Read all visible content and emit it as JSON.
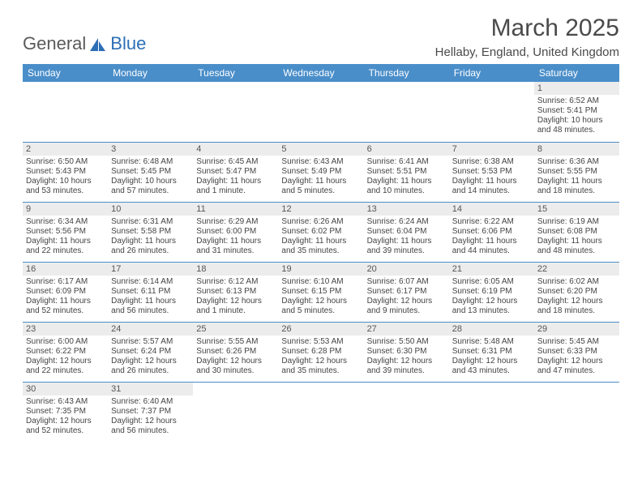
{
  "logo": {
    "part1": "General",
    "part2": "Blue"
  },
  "title": "March 2025",
  "location": "Hellaby, England, United Kingdom",
  "colors": {
    "header_bg": "#4a8ec9",
    "header_fg": "#ffffff",
    "daynum_bg": "#ececec",
    "border": "#4a8ec9",
    "text": "#444444",
    "logo_blue": "#2d6fb5"
  },
  "dayNames": [
    "Sunday",
    "Monday",
    "Tuesday",
    "Wednesday",
    "Thursday",
    "Friday",
    "Saturday"
  ],
  "weeks": [
    [
      null,
      null,
      null,
      null,
      null,
      null,
      {
        "n": "1",
        "sr": "Sunrise: 6:52 AM",
        "ss": "Sunset: 5:41 PM",
        "d1": "Daylight: 10 hours",
        "d2": "and 48 minutes."
      }
    ],
    [
      {
        "n": "2",
        "sr": "Sunrise: 6:50 AM",
        "ss": "Sunset: 5:43 PM",
        "d1": "Daylight: 10 hours",
        "d2": "and 53 minutes."
      },
      {
        "n": "3",
        "sr": "Sunrise: 6:48 AM",
        "ss": "Sunset: 5:45 PM",
        "d1": "Daylight: 10 hours",
        "d2": "and 57 minutes."
      },
      {
        "n": "4",
        "sr": "Sunrise: 6:45 AM",
        "ss": "Sunset: 5:47 PM",
        "d1": "Daylight: 11 hours",
        "d2": "and 1 minute."
      },
      {
        "n": "5",
        "sr": "Sunrise: 6:43 AM",
        "ss": "Sunset: 5:49 PM",
        "d1": "Daylight: 11 hours",
        "d2": "and 5 minutes."
      },
      {
        "n": "6",
        "sr": "Sunrise: 6:41 AM",
        "ss": "Sunset: 5:51 PM",
        "d1": "Daylight: 11 hours",
        "d2": "and 10 minutes."
      },
      {
        "n": "7",
        "sr": "Sunrise: 6:38 AM",
        "ss": "Sunset: 5:53 PM",
        "d1": "Daylight: 11 hours",
        "d2": "and 14 minutes."
      },
      {
        "n": "8",
        "sr": "Sunrise: 6:36 AM",
        "ss": "Sunset: 5:55 PM",
        "d1": "Daylight: 11 hours",
        "d2": "and 18 minutes."
      }
    ],
    [
      {
        "n": "9",
        "sr": "Sunrise: 6:34 AM",
        "ss": "Sunset: 5:56 PM",
        "d1": "Daylight: 11 hours",
        "d2": "and 22 minutes."
      },
      {
        "n": "10",
        "sr": "Sunrise: 6:31 AM",
        "ss": "Sunset: 5:58 PM",
        "d1": "Daylight: 11 hours",
        "d2": "and 26 minutes."
      },
      {
        "n": "11",
        "sr": "Sunrise: 6:29 AM",
        "ss": "Sunset: 6:00 PM",
        "d1": "Daylight: 11 hours",
        "d2": "and 31 minutes."
      },
      {
        "n": "12",
        "sr": "Sunrise: 6:26 AM",
        "ss": "Sunset: 6:02 PM",
        "d1": "Daylight: 11 hours",
        "d2": "and 35 minutes."
      },
      {
        "n": "13",
        "sr": "Sunrise: 6:24 AM",
        "ss": "Sunset: 6:04 PM",
        "d1": "Daylight: 11 hours",
        "d2": "and 39 minutes."
      },
      {
        "n": "14",
        "sr": "Sunrise: 6:22 AM",
        "ss": "Sunset: 6:06 PM",
        "d1": "Daylight: 11 hours",
        "d2": "and 44 minutes."
      },
      {
        "n": "15",
        "sr": "Sunrise: 6:19 AM",
        "ss": "Sunset: 6:08 PM",
        "d1": "Daylight: 11 hours",
        "d2": "and 48 minutes."
      }
    ],
    [
      {
        "n": "16",
        "sr": "Sunrise: 6:17 AM",
        "ss": "Sunset: 6:09 PM",
        "d1": "Daylight: 11 hours",
        "d2": "and 52 minutes."
      },
      {
        "n": "17",
        "sr": "Sunrise: 6:14 AM",
        "ss": "Sunset: 6:11 PM",
        "d1": "Daylight: 11 hours",
        "d2": "and 56 minutes."
      },
      {
        "n": "18",
        "sr": "Sunrise: 6:12 AM",
        "ss": "Sunset: 6:13 PM",
        "d1": "Daylight: 12 hours",
        "d2": "and 1 minute."
      },
      {
        "n": "19",
        "sr": "Sunrise: 6:10 AM",
        "ss": "Sunset: 6:15 PM",
        "d1": "Daylight: 12 hours",
        "d2": "and 5 minutes."
      },
      {
        "n": "20",
        "sr": "Sunrise: 6:07 AM",
        "ss": "Sunset: 6:17 PM",
        "d1": "Daylight: 12 hours",
        "d2": "and 9 minutes."
      },
      {
        "n": "21",
        "sr": "Sunrise: 6:05 AM",
        "ss": "Sunset: 6:19 PM",
        "d1": "Daylight: 12 hours",
        "d2": "and 13 minutes."
      },
      {
        "n": "22",
        "sr": "Sunrise: 6:02 AM",
        "ss": "Sunset: 6:20 PM",
        "d1": "Daylight: 12 hours",
        "d2": "and 18 minutes."
      }
    ],
    [
      {
        "n": "23",
        "sr": "Sunrise: 6:00 AM",
        "ss": "Sunset: 6:22 PM",
        "d1": "Daylight: 12 hours",
        "d2": "and 22 minutes."
      },
      {
        "n": "24",
        "sr": "Sunrise: 5:57 AM",
        "ss": "Sunset: 6:24 PM",
        "d1": "Daylight: 12 hours",
        "d2": "and 26 minutes."
      },
      {
        "n": "25",
        "sr": "Sunrise: 5:55 AM",
        "ss": "Sunset: 6:26 PM",
        "d1": "Daylight: 12 hours",
        "d2": "and 30 minutes."
      },
      {
        "n": "26",
        "sr": "Sunrise: 5:53 AM",
        "ss": "Sunset: 6:28 PM",
        "d1": "Daylight: 12 hours",
        "d2": "and 35 minutes."
      },
      {
        "n": "27",
        "sr": "Sunrise: 5:50 AM",
        "ss": "Sunset: 6:30 PM",
        "d1": "Daylight: 12 hours",
        "d2": "and 39 minutes."
      },
      {
        "n": "28",
        "sr": "Sunrise: 5:48 AM",
        "ss": "Sunset: 6:31 PM",
        "d1": "Daylight: 12 hours",
        "d2": "and 43 minutes."
      },
      {
        "n": "29",
        "sr": "Sunrise: 5:45 AM",
        "ss": "Sunset: 6:33 PM",
        "d1": "Daylight: 12 hours",
        "d2": "and 47 minutes."
      }
    ],
    [
      {
        "n": "30",
        "sr": "Sunrise: 6:43 AM",
        "ss": "Sunset: 7:35 PM",
        "d1": "Daylight: 12 hours",
        "d2": "and 52 minutes."
      },
      {
        "n": "31",
        "sr": "Sunrise: 6:40 AM",
        "ss": "Sunset: 7:37 PM",
        "d1": "Daylight: 12 hours",
        "d2": "and 56 minutes."
      },
      null,
      null,
      null,
      null,
      null
    ]
  ]
}
